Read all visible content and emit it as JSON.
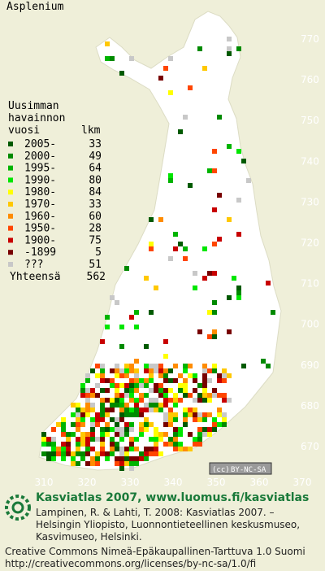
{
  "title": "Asplenium",
  "legend": {
    "header": [
      "Uusimman",
      "havainnon",
      "vuosi"
    ],
    "count_header": "lkm",
    "rows": [
      {
        "label": "2005-",
        "count": 33,
        "color": "#005a00"
      },
      {
        "label": "2000-",
        "count": 49,
        "color": "#008a00"
      },
      {
        "label": "1995-",
        "count": 64,
        "color": "#00b400"
      },
      {
        "label": "1990-",
        "count": 80,
        "color": "#00e600"
      },
      {
        "label": "1980-",
        "count": 84,
        "color": "#ffff00"
      },
      {
        "label": "1970-",
        "count": 33,
        "color": "#ffc800"
      },
      {
        "label": "1960-",
        "count": 60,
        "color": "#ff8c00"
      },
      {
        "label": "1950-",
        "count": 28,
        "color": "#ff4600"
      },
      {
        "label": "1900-",
        "count": 75,
        "color": "#c80000"
      },
      {
        "label": "-1899",
        "count": 5,
        "color": "#780000"
      },
      {
        "label": "???",
        "count": 51,
        "color": "#c8c8c8"
      }
    ],
    "total_label": "Yhteensä",
    "total": 562
  },
  "map": {
    "yticks": [
      770,
      760,
      750,
      740,
      730,
      720,
      710,
      700,
      690,
      680,
      670
    ],
    "xticks": [
      310,
      320,
      330,
      340,
      350,
      360,
      370
    ]
  },
  "cc_badge": {
    "left": "(cc)",
    "right": "BY-NC-SA"
  },
  "footer": {
    "heading": "Kasviatlas 2007, www.luomus.fi/kasviatlas",
    "citation": [
      "Lampinen, R. & Lahti, T. 2008: Kasviatlas 2007. –",
      "Helsingin Yliopisto, Luonnontieteellinen keskusmuseo,",
      "Kasvimuseo, Helsinki."
    ],
    "license": [
      "Creative Commons Nimeä-Epäkaupallinen-Tarttuva 1.0 Suomi",
      "http://creativecommons.org/licenses/by-nc-sa/1.0/fi"
    ]
  }
}
